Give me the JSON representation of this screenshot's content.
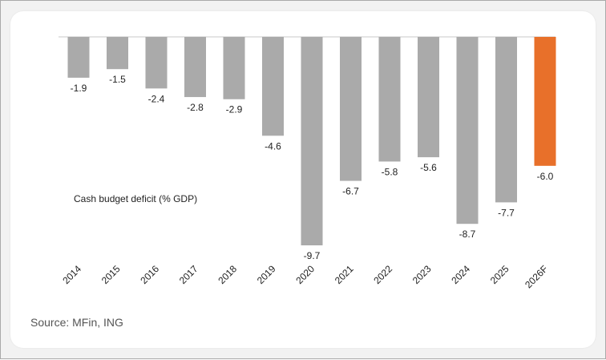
{
  "chart_data": {
    "type": "bar",
    "title": "Cash budget deficit (% GDP)",
    "categories": [
      "2014",
      "2015",
      "2016",
      "2017",
      "2018",
      "2019",
      "2020",
      "2021",
      "2022",
      "2023",
      "2024",
      "2025",
      "2026F"
    ],
    "values": [
      -1.9,
      -1.5,
      -2.4,
      -2.8,
      -2.9,
      -4.6,
      -9.7,
      -6.7,
      -5.8,
      -5.6,
      -8.7,
      -7.7,
      -6.0
    ],
    "value_labels": [
      "-1.9",
      "-1.5",
      "-2.4",
      "-2.8",
      "-2.9",
      "-4.6",
      "-9.7",
      "-6.7",
      "-5.8",
      "-5.6",
      "-8.7",
      "-7.7",
      "-6.0"
    ],
    "highlight_category": "2026F",
    "ylim": [
      -9.7,
      0
    ],
    "grid": false,
    "legend": "none",
    "colors": {
      "bar": "#aaaaaa",
      "highlight": "#e8702a",
      "axis": "#c8c8c8"
    }
  },
  "source": "Source: MFin, ING"
}
